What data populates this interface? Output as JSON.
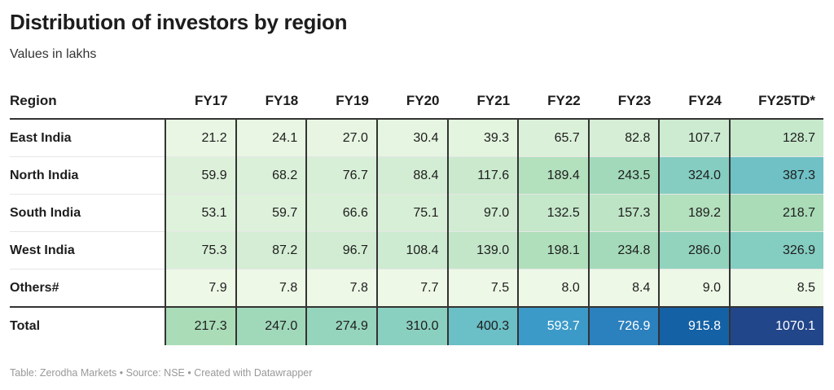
{
  "title": "Distribution of investors by region",
  "subtitle": "Values in lakhs",
  "footer": "Table: Zerodha Markets • Source: NSE • Created with Datawrapper",
  "chart_data": {
    "type": "table",
    "columns": [
      "Region",
      "FY17",
      "FY18",
      "FY19",
      "FY20",
      "FY21",
      "FY22",
      "FY23",
      "FY24",
      "FY25TD*"
    ],
    "rows": [
      {
        "label": "East India",
        "values": [
          21.2,
          24.1,
          27.0,
          30.4,
          39.3,
          65.7,
          82.8,
          107.7,
          128.7
        ]
      },
      {
        "label": "North India",
        "values": [
          59.9,
          68.2,
          76.7,
          88.4,
          117.6,
          189.4,
          243.5,
          324.0,
          387.3
        ]
      },
      {
        "label": "South India",
        "values": [
          53.1,
          59.7,
          66.6,
          75.1,
          97.0,
          132.5,
          157.3,
          189.2,
          218.7
        ]
      },
      {
        "label": "West India",
        "values": [
          75.3,
          87.2,
          96.7,
          108.4,
          139.0,
          198.1,
          234.8,
          286.0,
          326.9
        ]
      },
      {
        "label": "Others#",
        "values": [
          7.9,
          7.8,
          7.8,
          7.7,
          7.5,
          8.0,
          8.4,
          9.0,
          8.5
        ]
      },
      {
        "label": "Total",
        "values": [
          217.3,
          247.0,
          274.9,
          310.0,
          400.3,
          593.7,
          726.9,
          915.8,
          1070.1
        ]
      }
    ],
    "color_scale": [
      "#f0f9e8",
      "#aadcb7",
      "#8ad0c0",
      "#6bbfc6",
      "#3c9ac9",
      "#2b80be",
      "#1561a5",
      "#22468a"
    ]
  }
}
